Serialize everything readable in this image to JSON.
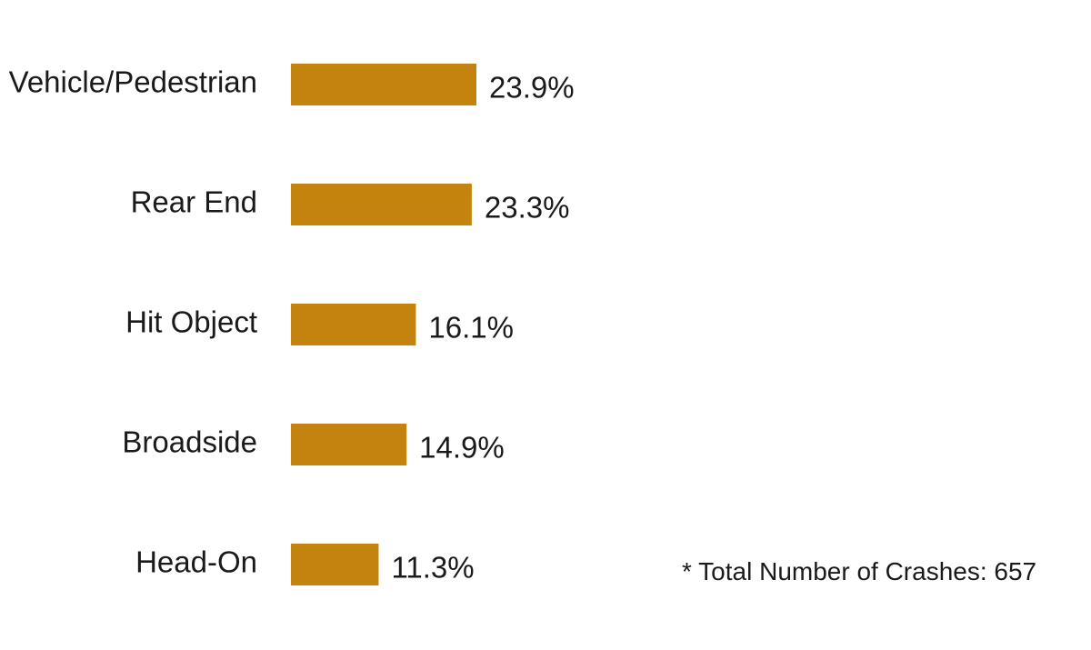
{
  "chart_data": {
    "type": "bar",
    "orientation": "horizontal",
    "categories": [
      "Vehicle/Pedestrian",
      "Rear End",
      "Hit Object",
      "Broadside",
      "Head-On"
    ],
    "values": [
      23.9,
      23.3,
      16.1,
      14.9,
      11.3
    ],
    "value_labels": [
      "23.9%",
      "23.3%",
      "16.1%",
      "14.9%",
      "11.3%"
    ],
    "unit": "%",
    "title": "",
    "xlabel": "",
    "ylabel": "",
    "grid": false,
    "legend": "none",
    "bar_color": "#c4820e"
  },
  "footnote": "* Total Number of Crashes: 657"
}
